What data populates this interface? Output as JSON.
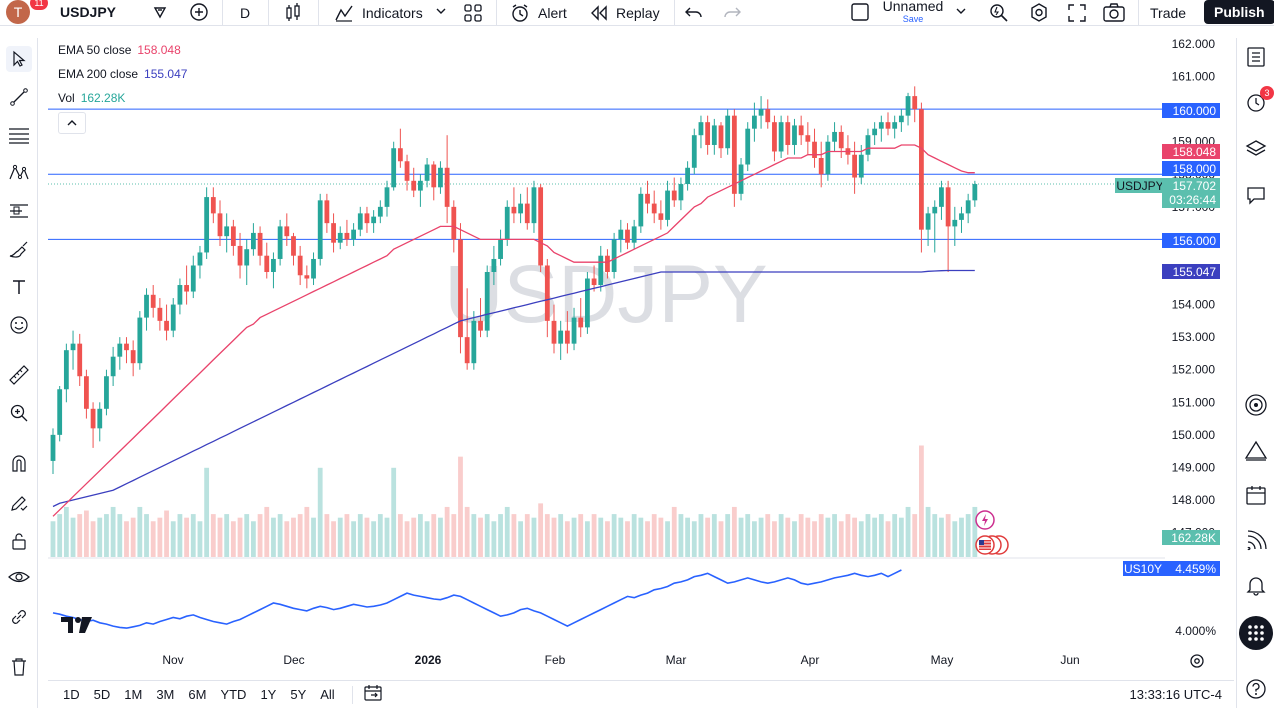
{
  "header": {
    "notification_count": "11",
    "avatar_letter": "T",
    "symbol": "USDJPY",
    "interval": "D",
    "indicators_label": "Indicators",
    "alert_label": "Alert",
    "replay_label": "Replay",
    "layout_name": "Unnamed",
    "layout_save": "Save",
    "trade_label": "Trade",
    "publish_label": "Publish"
  },
  "legend": {
    "ema50_name": "EMA 50 close",
    "ema50_value": "158.048",
    "ema200_name": "EMA 200 close",
    "ema200_value": "155.047",
    "vol_name": "Vol",
    "vol_value": "162.28K"
  },
  "watermark": "USDJPY",
  "price_axis": {
    "labels": [
      "162.000",
      "161.000",
      "160.000",
      "159.000",
      "158.000",
      "157.000",
      "156.000",
      "155.000",
      "154.000",
      "153.000",
      "152.000",
      "151.000",
      "150.000",
      "149.000",
      "148.000",
      "147.000"
    ],
    "tags": {
      "level_160": "160.000",
      "ema50": "158.048",
      "level_158": "158.000",
      "symbol": "USDJPY",
      "last_price": "157.702",
      "countdown": "03:26:44",
      "level_156": "156.000",
      "ema200": "155.047",
      "volume": "162.28K",
      "us10y_name": "US10Y",
      "us10y_value": "4.459%",
      "us10y_axis": "4.000%"
    }
  },
  "time_axis": [
    "Nov",
    "Dec",
    "2026",
    "Feb",
    "Mar",
    "Apr",
    "May",
    "Jun"
  ],
  "bottom": {
    "timeframes": [
      "1D",
      "5D",
      "1M",
      "3M",
      "6M",
      "YTD",
      "1Y",
      "5Y",
      "All"
    ],
    "clock": "13:33:16 UTC-4"
  },
  "colors": {
    "up": "#26a69a",
    "down": "#ef5350",
    "ema50": "#e9436b",
    "ema200": "#3b3fbf",
    "hline": "#2962ff",
    "us10y": "#2962ff",
    "last_price": "#5bbfae"
  },
  "chart_data": {
    "type": "candlestick",
    "ylim": [
      147,
      162
    ],
    "horizontal_levels": [
      160,
      158,
      156
    ],
    "ohlc": [
      [
        149.2,
        150.2,
        148.8,
        150.0
      ],
      [
        150.0,
        151.5,
        149.8,
        151.4
      ],
      [
        151.4,
        152.8,
        151.0,
        152.6
      ],
      [
        152.6,
        153.2,
        152.0,
        152.8
      ],
      [
        152.8,
        153.1,
        151.5,
        151.8
      ],
      [
        151.8,
        152.0,
        150.5,
        150.8
      ],
      [
        150.8,
        151.0,
        149.6,
        150.2
      ],
      [
        150.2,
        151.0,
        149.8,
        150.8
      ],
      [
        150.8,
        152.0,
        150.6,
        151.8
      ],
      [
        151.8,
        152.7,
        151.5,
        152.4
      ],
      [
        152.4,
        153.0,
        152.0,
        152.8
      ],
      [
        152.8,
        153.0,
        152.2,
        152.6
      ],
      [
        152.6,
        152.9,
        151.8,
        152.2
      ],
      [
        152.2,
        153.8,
        152.0,
        153.6
      ],
      [
        153.6,
        154.5,
        153.2,
        154.3
      ],
      [
        154.3,
        154.6,
        153.6,
        153.9
      ],
      [
        153.9,
        154.2,
        153.2,
        153.5
      ],
      [
        153.5,
        154.0,
        152.9,
        153.2
      ],
      [
        153.2,
        154.2,
        153.0,
        154.0
      ],
      [
        154.0,
        154.8,
        153.7,
        154.6
      ],
      [
        154.6,
        155.2,
        154.0,
        154.4
      ],
      [
        154.4,
        155.5,
        154.2,
        155.2
      ],
      [
        155.2,
        155.8,
        154.8,
        155.6
      ],
      [
        155.6,
        157.6,
        155.4,
        157.3
      ],
      [
        157.3,
        157.6,
        156.5,
        156.8
      ],
      [
        156.8,
        157.2,
        155.8,
        156.1
      ],
      [
        156.1,
        156.8,
        155.6,
        156.4
      ],
      [
        156.4,
        156.6,
        155.5,
        155.8
      ],
      [
        155.8,
        156.2,
        154.8,
        155.2
      ],
      [
        155.2,
        156.0,
        154.6,
        155.7
      ],
      [
        155.7,
        156.5,
        155.5,
        156.2
      ],
      [
        156.2,
        156.4,
        155.2,
        155.5
      ],
      [
        155.5,
        155.9,
        154.8,
        155.0
      ],
      [
        155.0,
        155.6,
        154.5,
        155.4
      ],
      [
        155.4,
        156.6,
        155.2,
        156.4
      ],
      [
        156.4,
        156.8,
        155.8,
        156.1
      ],
      [
        156.1,
        156.2,
        155.2,
        155.5
      ],
      [
        155.5,
        155.8,
        154.6,
        154.9
      ],
      [
        154.9,
        155.2,
        154.5,
        154.8
      ],
      [
        154.8,
        155.6,
        154.6,
        155.4
      ],
      [
        155.4,
        157.4,
        155.2,
        157.2
      ],
      [
        157.2,
        157.4,
        156.2,
        156.5
      ],
      [
        156.5,
        156.8,
        155.6,
        155.9
      ],
      [
        155.9,
        156.4,
        155.7,
        156.2
      ],
      [
        156.2,
        156.6,
        155.8,
        156.0
      ],
      [
        156.0,
        156.5,
        155.8,
        156.3
      ],
      [
        156.3,
        157.0,
        156.1,
        156.8
      ],
      [
        156.8,
        157.0,
        156.2,
        156.5
      ],
      [
        156.5,
        156.9,
        156.2,
        156.7
      ],
      [
        156.7,
        157.2,
        156.5,
        157.0
      ],
      [
        157.0,
        157.8,
        156.7,
        157.6
      ],
      [
        157.6,
        159.0,
        157.5,
        158.8
      ],
      [
        158.8,
        159.4,
        158.2,
        158.4
      ],
      [
        158.4,
        158.6,
        157.5,
        157.8
      ],
      [
        157.8,
        158.2,
        157.3,
        157.5
      ],
      [
        157.5,
        158.0,
        157.0,
        157.8
      ],
      [
        157.8,
        158.5,
        157.6,
        158.3
      ],
      [
        158.3,
        158.4,
        157.2,
        157.6
      ],
      [
        157.6,
        158.4,
        157.4,
        158.2
      ],
      [
        158.2,
        159.2,
        156.5,
        157.0
      ],
      [
        157.0,
        157.2,
        155.6,
        156.0
      ],
      [
        156.0,
        156.5,
        152.5,
        153.0
      ],
      [
        153.0,
        154.5,
        152.0,
        152.2
      ],
      [
        152.2,
        153.8,
        152.0,
        153.5
      ],
      [
        153.5,
        154.2,
        153.0,
        153.2
      ],
      [
        153.2,
        155.2,
        153.0,
        155.0
      ],
      [
        155.0,
        155.8,
        154.6,
        155.4
      ],
      [
        155.4,
        156.3,
        155.2,
        156.0
      ],
      [
        156.0,
        157.2,
        155.8,
        157.0
      ],
      [
        157.0,
        157.6,
        156.5,
        156.8
      ],
      [
        156.8,
        157.4,
        156.5,
        157.1
      ],
      [
        157.1,
        157.6,
        156.3,
        156.5
      ],
      [
        156.5,
        157.8,
        156.2,
        157.6
      ],
      [
        157.6,
        157.7,
        155.0,
        155.2
      ],
      [
        155.2,
        155.4,
        153.0,
        153.5
      ],
      [
        153.5,
        154.0,
        152.5,
        152.8
      ],
      [
        152.8,
        153.5,
        152.3,
        153.2
      ],
      [
        153.2,
        153.8,
        152.5,
        152.8
      ],
      [
        152.8,
        153.9,
        152.6,
        153.6
      ],
      [
        153.6,
        154.2,
        153.0,
        153.3
      ],
      [
        153.3,
        155.0,
        153.1,
        154.8
      ],
      [
        154.8,
        155.2,
        154.4,
        154.6
      ],
      [
        154.6,
        155.8,
        154.4,
        155.5
      ],
      [
        155.5,
        155.7,
        154.8,
        155.0
      ],
      [
        155.0,
        156.2,
        154.8,
        156.0
      ],
      [
        156.0,
        156.6,
        155.6,
        156.3
      ],
      [
        156.3,
        156.5,
        155.7,
        155.9
      ],
      [
        155.9,
        156.6,
        155.7,
        156.4
      ],
      [
        156.4,
        157.6,
        156.2,
        157.4
      ],
      [
        157.4,
        157.8,
        156.8,
        157.1
      ],
      [
        157.1,
        157.5,
        156.5,
        156.8
      ],
      [
        156.8,
        157.2,
        156.3,
        156.6
      ],
      [
        156.6,
        157.8,
        156.4,
        157.5
      ],
      [
        157.5,
        157.9,
        157.0,
        157.2
      ],
      [
        157.2,
        157.9,
        156.9,
        157.7
      ],
      [
        157.7,
        158.4,
        157.5,
        158.2
      ],
      [
        158.2,
        159.4,
        158.0,
        159.2
      ],
      [
        159.2,
        159.8,
        158.8,
        159.6
      ],
      [
        159.6,
        159.8,
        158.6,
        158.9
      ],
      [
        158.9,
        159.7,
        158.6,
        159.5
      ],
      [
        159.5,
        159.6,
        158.5,
        158.8
      ],
      [
        158.8,
        160.0,
        158.6,
        159.8
      ],
      [
        159.8,
        160.0,
        157.0,
        157.4
      ],
      [
        157.4,
        158.5,
        157.2,
        158.3
      ],
      [
        158.3,
        159.6,
        158.1,
        159.4
      ],
      [
        159.4,
        160.2,
        159.0,
        159.8
      ],
      [
        159.8,
        160.4,
        159.4,
        160.0
      ],
      [
        160.0,
        160.3,
        159.4,
        159.6
      ],
      [
        159.6,
        159.8,
        158.4,
        158.7
      ],
      [
        158.7,
        159.8,
        158.5,
        159.6
      ],
      [
        159.6,
        159.8,
        158.6,
        158.9
      ],
      [
        158.9,
        159.7,
        158.6,
        159.5
      ],
      [
        159.5,
        159.8,
        158.9,
        159.2
      ],
      [
        159.2,
        159.6,
        158.6,
        159.0
      ],
      [
        159.0,
        159.4,
        158.2,
        158.5
      ],
      [
        158.5,
        159.0,
        157.6,
        158.0
      ],
      [
        158.0,
        159.2,
        157.8,
        159.0
      ],
      [
        159.0,
        159.6,
        158.7,
        159.3
      ],
      [
        159.3,
        159.5,
        158.5,
        158.8
      ],
      [
        158.8,
        159.2,
        158.3,
        158.6
      ],
      [
        158.6,
        159.0,
        157.4,
        157.9
      ],
      [
        157.9,
        158.9,
        157.7,
        158.6
      ],
      [
        158.6,
        159.4,
        158.4,
        159.2
      ],
      [
        159.2,
        159.6,
        158.9,
        159.4
      ],
      [
        159.4,
        159.8,
        159.0,
        159.6
      ],
      [
        159.6,
        159.9,
        159.2,
        159.4
      ],
      [
        159.4,
        159.8,
        159.1,
        159.6
      ],
      [
        159.6,
        160.0,
        159.3,
        159.8
      ],
      [
        159.8,
        160.5,
        159.5,
        160.4
      ],
      [
        160.4,
        160.7,
        159.6,
        160.0
      ],
      [
        160.0,
        160.2,
        155.6,
        156.3
      ],
      [
        156.3,
        157.0,
        155.8,
        156.8
      ],
      [
        156.8,
        157.2,
        155.6,
        157.0
      ],
      [
        157.0,
        157.8,
        156.6,
        157.6
      ],
      [
        157.6,
        157.8,
        155.0,
        156.4
      ],
      [
        156.4,
        157.0,
        155.8,
        156.6
      ],
      [
        156.6,
        157.0,
        156.2,
        156.8
      ],
      [
        156.8,
        157.4,
        156.5,
        157.2
      ],
      [
        157.2,
        157.8,
        157.0,
        157.7
      ]
    ],
    "volume_relative": [
      0.5,
      0.6,
      0.7,
      0.55,
      0.6,
      0.65,
      0.5,
      0.55,
      0.6,
      0.7,
      0.6,
      0.5,
      0.55,
      0.7,
      0.6,
      0.5,
      0.55,
      0.65,
      0.5,
      0.6,
      0.55,
      0.6,
      0.5,
      0.8,
      0.6,
      0.55,
      0.6,
      0.5,
      0.55,
      0.6,
      0.5,
      0.6,
      0.7,
      0.55,
      0.6,
      0.5,
      0.55,
      0.6,
      0.7,
      0.55,
      0.8,
      0.6,
      0.5,
      0.55,
      0.6,
      0.5,
      0.6,
      0.55,
      0.5,
      0.6,
      0.55,
      0.8,
      0.6,
      0.5,
      0.55,
      0.6,
      0.5,
      0.6,
      0.55,
      0.7,
      0.6,
      0.9,
      0.7,
      0.6,
      0.55,
      0.6,
      0.5,
      0.6,
      0.7,
      0.6,
      0.5,
      0.6,
      0.55,
      0.75,
      0.6,
      0.55,
      0.6,
      0.5,
      0.55,
      0.6,
      0.5,
      0.6,
      0.55,
      0.5,
      0.6,
      0.55,
      0.5,
      0.6,
      0.55,
      0.5,
      0.6,
      0.55,
      0.5,
      0.7,
      0.6,
      0.55,
      0.5,
      0.6,
      0.55,
      0.6,
      0.5,
      0.6,
      0.7,
      0.55,
      0.6,
      0.5,
      0.55,
      0.6,
      0.5,
      0.6,
      0.55,
      0.5,
      0.6,
      0.55,
      0.5,
      0.6,
      0.55,
      0.6,
      0.5,
      0.6,
      0.55,
      0.5,
      0.6,
      0.55,
      0.6,
      0.5,
      0.6,
      0.55,
      0.7,
      0.6,
      1.0,
      0.7,
      0.6,
      0.55,
      0.6,
      0.5,
      0.55,
      0.6,
      0.7
    ],
    "ema50": [
      147.5,
      147.7,
      147.9,
      148.1,
      148.3,
      148.5,
      148.7,
      148.9,
      149.1,
      149.3,
      149.5,
      149.7,
      149.9,
      150.1,
      150.3,
      150.5,
      150.7,
      150.9,
      151.1,
      151.3,
      151.5,
      151.7,
      151.9,
      152.1,
      152.3,
      152.5,
      152.7,
      152.9,
      153.1,
      153.3,
      153.4,
      153.6,
      153.7,
      153.8,
      153.9,
      154.0,
      154.1,
      154.2,
      154.3,
      154.4,
      154.5,
      154.6,
      154.7,
      154.8,
      154.9,
      155.0,
      155.1,
      155.2,
      155.3,
      155.4,
      155.5,
      155.7,
      155.8,
      155.9,
      156.0,
      156.1,
      156.2,
      156.3,
      156.4,
      156.4,
      156.4,
      156.3,
      156.2,
      156.1,
      156.0,
      156.0,
      156.0,
      156.0,
      156.0,
      156.0,
      156.0,
      156.0,
      156.0,
      155.9,
      155.8,
      155.6,
      155.5,
      155.4,
      155.3,
      155.3,
      155.3,
      155.3,
      155.3,
      155.3,
      155.4,
      155.5,
      155.6,
      155.7,
      155.8,
      155.9,
      156.0,
      156.1,
      156.2,
      156.4,
      156.6,
      156.8,
      157.0,
      157.1,
      157.3,
      157.4,
      157.5,
      157.6,
      157.7,
      157.8,
      157.9,
      158.0,
      158.1,
      158.2,
      158.3,
      158.4,
      158.5,
      158.5,
      158.5,
      158.6,
      158.6,
      158.6,
      158.7,
      158.7,
      158.7,
      158.7,
      158.7,
      158.7,
      158.8,
      158.8,
      158.8,
      158.8,
      158.8,
      158.9,
      158.9,
      158.9,
      158.8,
      158.6,
      158.5,
      158.4,
      158.3,
      158.2,
      158.1,
      158.05,
      158.048
    ],
    "ema200": [
      147.8,
      147.9,
      147.95,
      148.0,
      148.05,
      148.1,
      148.15,
      148.2,
      148.25,
      148.3,
      148.4,
      148.5,
      148.6,
      148.7,
      148.8,
      148.9,
      149.0,
      149.1,
      149.2,
      149.3,
      149.4,
      149.5,
      149.6,
      149.7,
      149.8,
      149.9,
      150.0,
      150.1,
      150.2,
      150.3,
      150.4,
      150.5,
      150.6,
      150.7,
      150.8,
      150.9,
      151.0,
      151.1,
      151.2,
      151.3,
      151.4,
      151.5,
      151.6,
      151.7,
      151.8,
      151.9,
      152.0,
      152.1,
      152.2,
      152.3,
      152.4,
      152.5,
      152.6,
      152.7,
      152.8,
      152.9,
      153.0,
      153.1,
      153.2,
      153.3,
      153.4,
      153.5,
      153.55,
      153.6,
      153.65,
      153.7,
      153.75,
      153.8,
      153.85,
      153.9,
      153.95,
      154.0,
      154.05,
      154.1,
      154.15,
      154.2,
      154.25,
      154.3,
      154.35,
      154.4,
      154.45,
      154.5,
      154.55,
      154.6,
      154.65,
      154.7,
      154.75,
      154.8,
      154.85,
      154.9,
      154.95,
      155.0,
      155.0,
      155.0,
      155.0,
      155.0,
      155.0,
      155.0,
      155.0,
      155.0,
      155.0,
      155.0,
      155.0,
      155.0,
      155.0,
      155.0,
      155.0,
      155.0,
      155.0,
      155.0,
      155.0,
      155.0,
      155.0,
      155.0,
      155.0,
      155.0,
      155.0,
      155.0,
      155.0,
      155.0,
      155.0,
      155.0,
      155.0,
      155.0,
      155.0,
      155.0,
      155.0,
      155.0,
      155.0,
      155.0,
      155.0,
      155.02,
      155.03,
      155.04,
      155.047,
      155.047,
      155.047,
      155.047,
      155.047
    ],
    "us10y_relative": [
      0.35,
      0.33,
      0.3,
      0.28,
      0.25,
      0.22,
      0.24,
      0.2,
      0.18,
      0.15,
      0.13,
      0.12,
      0.14,
      0.16,
      0.2,
      0.18,
      0.22,
      0.25,
      0.28,
      0.26,
      0.3,
      0.32,
      0.28,
      0.25,
      0.22,
      0.2,
      0.18,
      0.22,
      0.25,
      0.3,
      0.35,
      0.4,
      0.45,
      0.5,
      0.48,
      0.45,
      0.42,
      0.4,
      0.38,
      0.42,
      0.45,
      0.43,
      0.4,
      0.42,
      0.45,
      0.48,
      0.46,
      0.44,
      0.45,
      0.47,
      0.5,
      0.55,
      0.6,
      0.65,
      0.62,
      0.6,
      0.58,
      0.56,
      0.55,
      0.58,
      0.62,
      0.6,
      0.55,
      0.5,
      0.45,
      0.4,
      0.35,
      0.3,
      0.32,
      0.35,
      0.4,
      0.42,
      0.38,
      0.35,
      0.3,
      0.25,
      0.2,
      0.15,
      0.2,
      0.25,
      0.3,
      0.35,
      0.4,
      0.45,
      0.5,
      0.55,
      0.6,
      0.58,
      0.62,
      0.65,
      0.7,
      0.72,
      0.75,
      0.8,
      0.82,
      0.85,
      0.9,
      0.92,
      0.95,
      0.9,
      0.85,
      0.8,
      0.82,
      0.85,
      0.88,
      0.85,
      0.82,
      0.8,
      0.82,
      0.85,
      0.88,
      0.85,
      0.8,
      0.78,
      0.8,
      0.82,
      0.85,
      0.88,
      0.9,
      0.92,
      0.95,
      0.92,
      0.9,
      0.92,
      0.95,
      0.9,
      0.95,
      1.0
    ]
  }
}
